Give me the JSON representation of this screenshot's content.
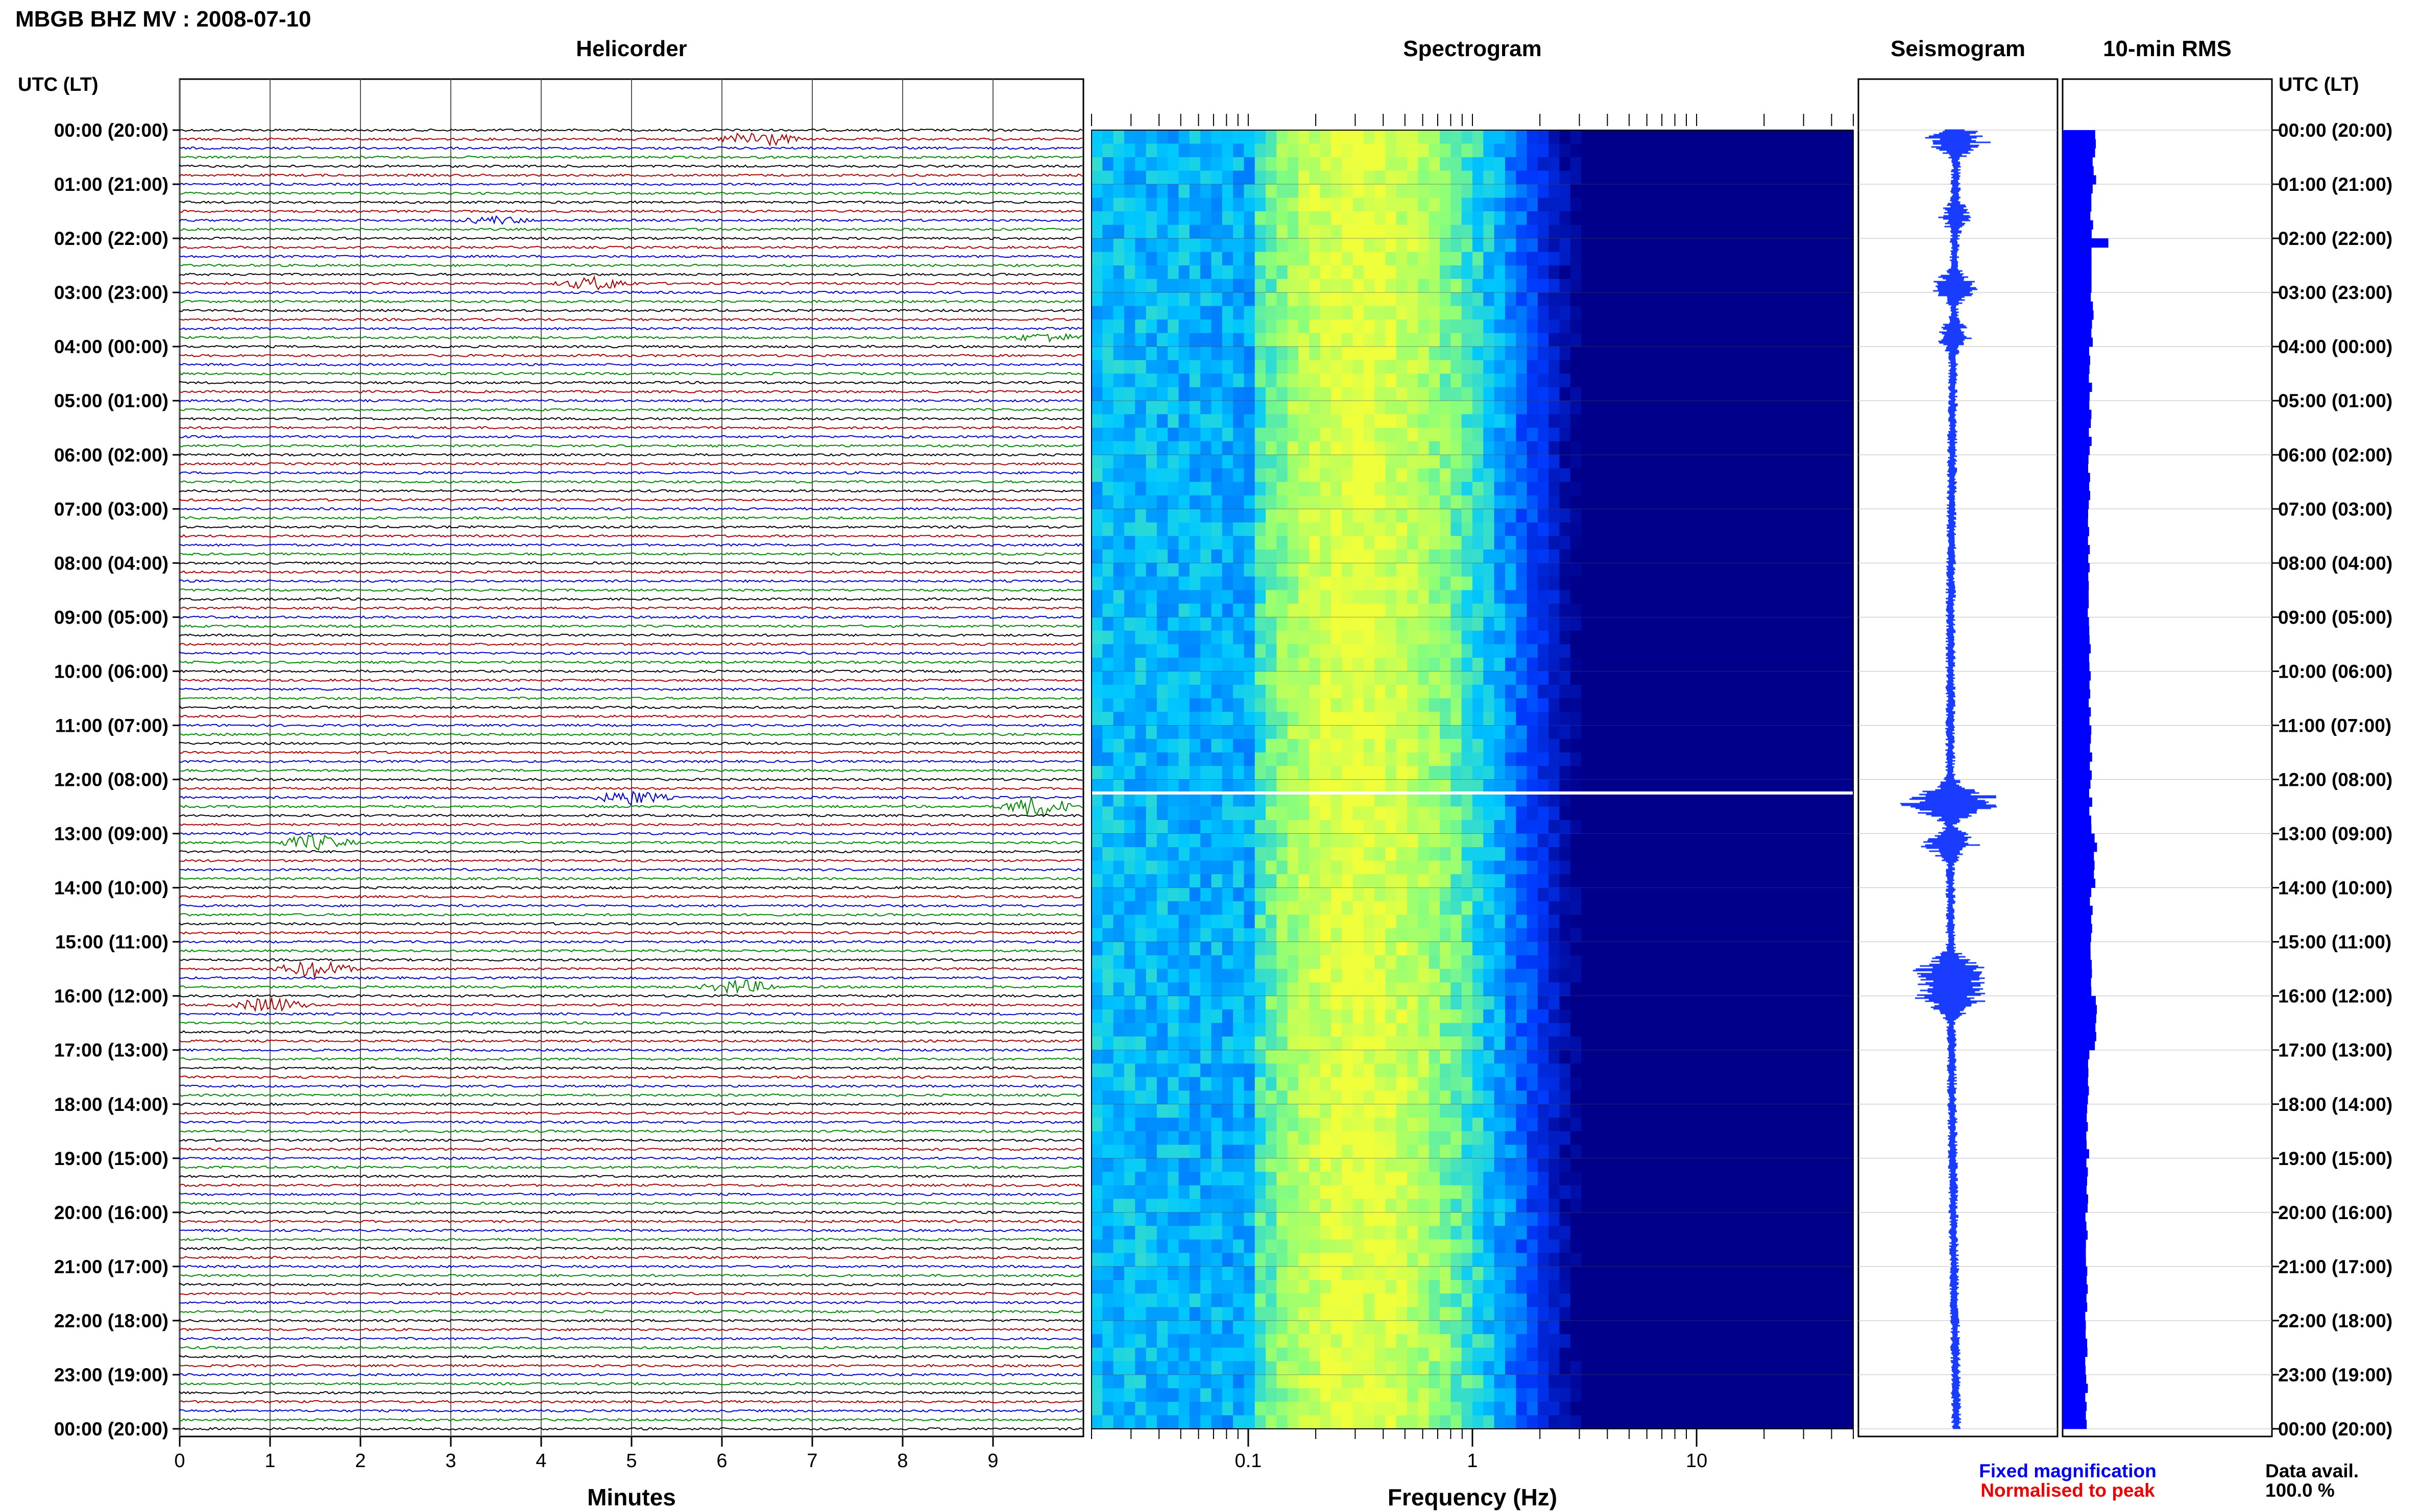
{
  "header": {
    "title": "MBGB BHZ MV : 2008-07-10",
    "utc_lt": "UTC (LT)"
  },
  "panels": {
    "helicorder": "Helicorder",
    "spectrogram": "Spectrogram",
    "seismogram": "Seismogram",
    "rms": "10-min RMS"
  },
  "hour_labels": [
    "00:00 (20:00)",
    "01:00 (21:00)",
    "02:00 (22:00)",
    "03:00 (23:00)",
    "04:00 (00:00)",
    "05:00 (01:00)",
    "06:00 (02:00)",
    "07:00 (03:00)",
    "08:00 (04:00)",
    "09:00 (05:00)",
    "10:00 (06:00)",
    "11:00 (07:00)",
    "12:00 (08:00)",
    "13:00 (09:00)",
    "14:00 (10:00)",
    "15:00 (11:00)",
    "16:00 (12:00)",
    "17:00 (13:00)",
    "18:00 (14:00)",
    "19:00 (15:00)",
    "20:00 (16:00)",
    "21:00 (17:00)",
    "22:00 (18:00)",
    "23:00 (19:00)",
    "00:00 (20:00)"
  ],
  "x_axes": {
    "minutes_label": "Minutes",
    "minutes_ticks": [
      "0",
      "1",
      "2",
      "3",
      "4",
      "5",
      "6",
      "7",
      "8",
      "9"
    ],
    "freq_label": "Frequency (Hz)",
    "freq_ticks": [
      "0.1",
      "1",
      "10"
    ]
  },
  "legend": {
    "fixed": "Fixed magnification",
    "normalised": "Normalised to peak",
    "fixed_color": "#0000ee",
    "normalised_color": "#ee0000"
  },
  "data_avail": {
    "label": "Data avail.",
    "value": "100.0 %"
  },
  "colors": {
    "trace_cycle": [
      "#000000",
      "#aa0000",
      "#0000cc",
      "#008800"
    ],
    "spectro_low": "#00008b",
    "spectro_mid": "#00c8ff",
    "spectro_high": "#f0ff40",
    "rms_bar": "#0000ff",
    "seismogram": "#1a3cff"
  },
  "chart_data": [
    {
      "type": "line",
      "title": "Helicorder",
      "xlabel": "Minutes",
      "xlim": [
        0,
        10
      ],
      "rows_per_hour": 6,
      "hours": 24,
      "events": [
        {
          "hour": 0.2,
          "minute": 6.4,
          "amp": 2.5
        },
        {
          "hour": 1.6,
          "minute": 3.5,
          "amp": 1.0
        },
        {
          "hour": 2.9,
          "minute": 4.6,
          "amp": 1.8
        },
        {
          "hour": 3.8,
          "minute": 9.6,
          "amp": 1.2
        },
        {
          "hour": 12.3,
          "minute": 5.0,
          "amp": 2.0
        },
        {
          "hour": 12.5,
          "minute": 9.5,
          "amp": 3.0
        },
        {
          "hour": 13.2,
          "minute": 1.5,
          "amp": 2.2
        },
        {
          "hour": 15.5,
          "minute": 1.5,
          "amp": 2.5
        },
        {
          "hour": 15.8,
          "minute": 6.2,
          "amp": 2.0
        },
        {
          "hour": 16.1,
          "minute": 1.0,
          "amp": 2.2
        }
      ]
    },
    {
      "type": "heatmap",
      "title": "Spectrogram",
      "xlabel": "Frequency (Hz)",
      "xscale": "log",
      "xlim": [
        0.02,
        50
      ],
      "peak_frequency_hz": 0.3,
      "gap_hour": 12.25
    },
    {
      "type": "bar",
      "title": "10-min RMS",
      "orientation": "horizontal",
      "interval_minutes": 10,
      "values_hourly": [
        0.66,
        0.6,
        0.95,
        0.62,
        0.58,
        0.57,
        0.56,
        0.55,
        0.55,
        0.56,
        0.57,
        0.58,
        0.58,
        0.68,
        0.6,
        0.58,
        0.7,
        0.55,
        0.52,
        0.5,
        0.5,
        0.5,
        0.5,
        0.5
      ]
    }
  ]
}
